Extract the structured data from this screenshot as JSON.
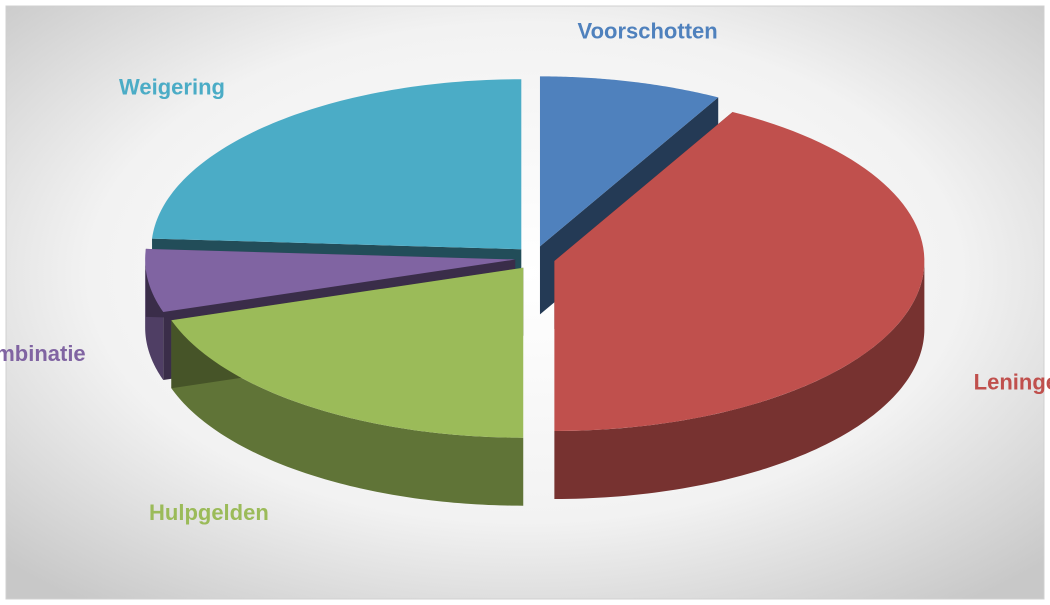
{
  "chart_data": {
    "type": "pie",
    "categories": [
      "Voorschotten",
      "Leningen",
      "Hulpgelden",
      "Combinatie",
      "Weigering"
    ],
    "values": [
      8,
      42,
      20,
      6,
      24
    ],
    "colors": [
      "#4f81bd",
      "#c0504d",
      "#9bbb59",
      "#8064a2",
      "#4bacc6"
    ]
  }
}
